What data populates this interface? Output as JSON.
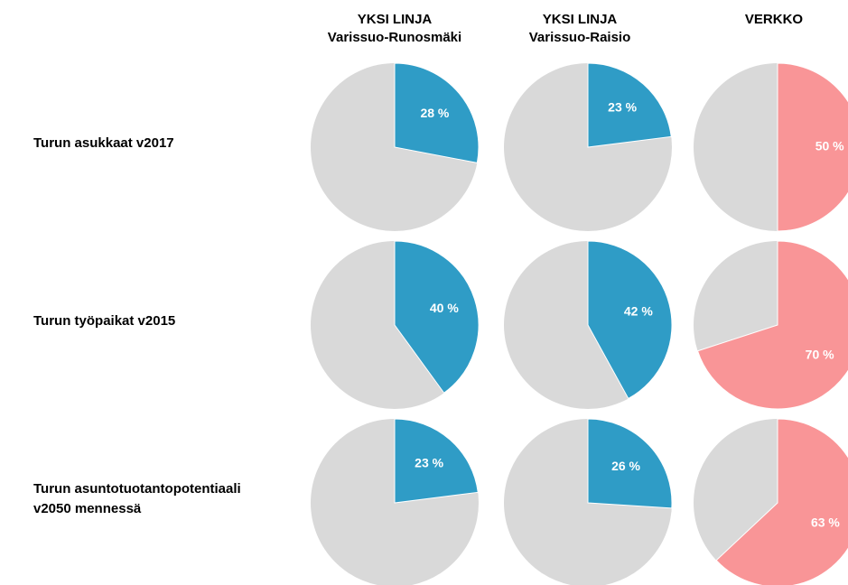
{
  "columns": [
    [
      "YKSI LINJA",
      "Varissuo-Runosmäki"
    ],
    [
      "YKSI LINJA",
      "Varissuo-Raisio"
    ],
    [
      "VERKKO"
    ]
  ],
  "rows": [
    [
      "Turun asukkaat v2017"
    ],
    [
      "Turun työpaikat v2015"
    ],
    [
      "Turun asuntotuotantopotentiaali",
      "v2050 mennessä"
    ]
  ],
  "chart_data": [
    {
      "type": "pie",
      "values": [
        28
      ],
      "value_labels": [
        "28 %"
      ],
      "color": "#2f9cc6"
    },
    {
      "type": "pie",
      "values": [
        23
      ],
      "value_labels": [
        "23 %"
      ],
      "color": "#2f9cc6"
    },
    {
      "type": "pie",
      "values": [
        50
      ],
      "value_labels": [
        "50 %"
      ],
      "color": "#f99597"
    },
    {
      "type": "pie",
      "values": [
        40
      ],
      "value_labels": [
        "40 %"
      ],
      "color": "#2f9cc6"
    },
    {
      "type": "pie",
      "values": [
        42
      ],
      "value_labels": [
        "42 %"
      ],
      "color": "#2f9cc6"
    },
    {
      "type": "pie",
      "values": [
        70
      ],
      "value_labels": [
        "70 %"
      ],
      "color": "#f99597"
    },
    {
      "type": "pie",
      "values": [
        23
      ],
      "value_labels": [
        "23 %"
      ],
      "color": "#2f9cc6"
    },
    {
      "type": "pie",
      "values": [
        26
      ],
      "value_labels": [
        "26 %"
      ],
      "color": "#2f9cc6"
    },
    {
      "type": "pie",
      "values": [
        63
      ],
      "value_labels": [
        "63 %"
      ],
      "color": "#f99597"
    }
  ]
}
